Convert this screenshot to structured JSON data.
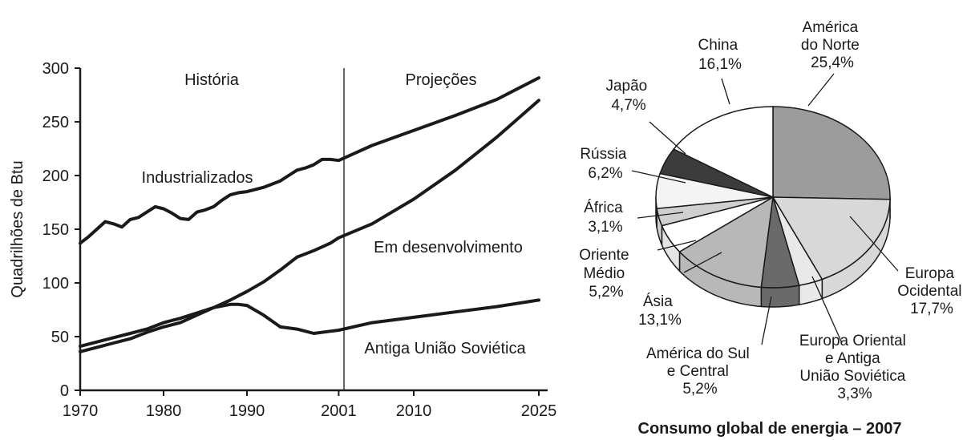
{
  "chart_data": [
    {
      "type": "line",
      "ylabel": "Quadrilhões de Btu",
      "xlim": [
        1970,
        2025
      ],
      "ylim": [
        0,
        300
      ],
      "x_ticks": [
        {
          "value": 1970,
          "label": "1970"
        },
        {
          "value": 1980,
          "label": "1980"
        },
        {
          "value": 1990,
          "label": "1990"
        },
        {
          "value": 2001,
          "label": "2001"
        },
        {
          "value": 2010,
          "label": "2010"
        },
        {
          "value": 2025,
          "label": "2025"
        }
      ],
      "y_ticks": [
        {
          "value": 0,
          "label": "0"
        },
        {
          "value": 50,
          "label": "50"
        },
        {
          "value": 100,
          "label": "100"
        },
        {
          "value": 150,
          "label": "150"
        },
        {
          "value": 200,
          "label": "200"
        },
        {
          "value": 250,
          "label": "250"
        },
        {
          "value": 300,
          "label": "300"
        }
      ],
      "divider_x": 2001,
      "period_labels": {
        "history": "História",
        "projections": "Projeções"
      },
      "series": [
        {
          "name": "Industrializados",
          "x": [
            1970,
            1971,
            1972,
            1973,
            1974,
            1975,
            1976,
            1977,
            1978,
            1979,
            1980,
            1981,
            1982,
            1983,
            1984,
            1985,
            1986,
            1987,
            1988,
            1989,
            1990,
            1991,
            1992,
            1993,
            1994,
            1995,
            1996,
            1997,
            1998,
            1999,
            2000,
            2001,
            2005,
            2010,
            2015,
            2020,
            2025
          ],
          "y": [
            137,
            143,
            150,
            157,
            155,
            152,
            159,
            161,
            166,
            171,
            169,
            165,
            160,
            159,
            166,
            168,
            171,
            177,
            182,
            184,
            185,
            187,
            189,
            192,
            195,
            200,
            205,
            207,
            210,
            215,
            215,
            214,
            228,
            242,
            256,
            271,
            291
          ]
        },
        {
          "name": "Em desenvolvimento",
          "x": [
            1970,
            1972,
            1974,
            1976,
            1978,
            1980,
            1982,
            1984,
            1986,
            1988,
            1990,
            1992,
            1994,
            1996,
            1998,
            2000,
            2001,
            2005,
            2010,
            2015,
            2020,
            2025
          ],
          "y": [
            36,
            40,
            44,
            48,
            54,
            59,
            63,
            70,
            77,
            84,
            92,
            101,
            112,
            124,
            130,
            137,
            142,
            155,
            178,
            205,
            236,
            270
          ]
        },
        {
          "name": "Antiga União Soviética",
          "x": [
            1970,
            1972,
            1974,
            1976,
            1978,
            1980,
            1982,
            1984,
            1986,
            1988,
            1989,
            1990,
            1992,
            1994,
            1996,
            1998,
            2000,
            2001,
            2005,
            2010,
            2015,
            2020,
            2025
          ],
          "y": [
            41,
            45,
            49,
            53,
            57,
            63,
            67,
            72,
            77,
            80,
            80,
            79,
            70,
            59,
            57,
            53,
            55,
            56,
            63,
            68,
            73,
            78,
            84
          ]
        }
      ]
    },
    {
      "type": "pie",
      "title": "Consumo global de energia – 2007",
      "slices": [
        {
          "name": "América do Norte",
          "value_label": "25,4%",
          "value": 25.4,
          "color": "#9c9c9c"
        },
        {
          "name": "Europa Ocidental",
          "value_label": "17,7%",
          "value": 17.7,
          "color": "#d8d8d8"
        },
        {
          "name": "Europa Oriental e Antiga União Soviética",
          "value_label": "3,3%",
          "value": 3.3,
          "color": "#e9e9e9"
        },
        {
          "name": "América do Sul e Central",
          "value_label": "5,2%",
          "value": 5.2,
          "color": "#6a6a6a"
        },
        {
          "name": "Ásia",
          "value_label": "13,1%",
          "value": 13.1,
          "color": "#b8b8b8"
        },
        {
          "name": "Oriente Médio",
          "value_label": "5,2%",
          "value": 5.2,
          "color": "#ffffff"
        },
        {
          "name": "África",
          "value_label": "3,1%",
          "value": 3.1,
          "color": "#cfcfcf"
        },
        {
          "name": "Rússia",
          "value_label": "6,2%",
          "value": 6.2,
          "color": "#f4f4f4"
        },
        {
          "name": "Japão",
          "value_label": "4,7%",
          "value": 4.7,
          "color": "#3c3c3c"
        },
        {
          "name": "China",
          "value_label": "16,1%",
          "value": 16.1,
          "color": "#ffffff"
        }
      ]
    }
  ]
}
